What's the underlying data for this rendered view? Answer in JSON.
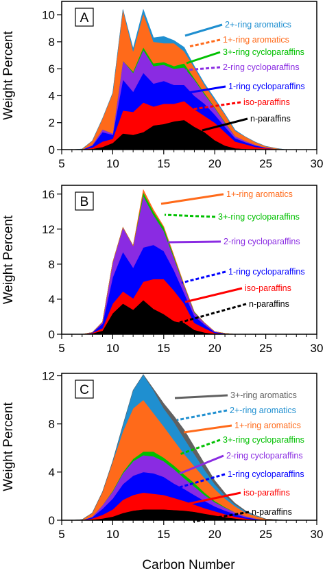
{
  "figure": {
    "ylabel": "Weight Percent",
    "xlabel": "Carbon Number"
  },
  "colors": {
    "n-paraffins": "#000000",
    "iso-paraffins": "#ff0000",
    "1-ring cycloparaffins": "#0000ff",
    "2-ring cycloparaffins": "#8a2be2",
    "3+-ring cycloparaffins": "#00c000",
    "1+-ring aromatics": "#ff6a1a",
    "2+-ring aromatics": "#1f8fd0",
    "3+-ring aromatics": "#606060"
  },
  "chart_data": [
    {
      "panel": "A",
      "type": "area",
      "stacked": true,
      "x": [
        6,
        7,
        8,
        9,
        10,
        11,
        12,
        13,
        14,
        15,
        16,
        17,
        18,
        19,
        20,
        21,
        22,
        23,
        24,
        25,
        26,
        27,
        28,
        29,
        30
      ],
      "xlim": [
        5,
        30
      ],
      "xticks": [
        5,
        10,
        15,
        20,
        25,
        30
      ],
      "ylim": [
        0,
        11
      ],
      "yticks": [
        0,
        2,
        4,
        6,
        8,
        10
      ],
      "series": [
        {
          "name": "n-paraffins",
          "values": [
            0,
            0,
            0.05,
            0.2,
            0.5,
            1.2,
            1.1,
            1.3,
            1.8,
            1.9,
            2.1,
            2.2,
            1.7,
            1.3,
            0.7,
            0.3,
            0.1,
            0.05,
            0,
            0,
            0,
            0,
            0,
            0,
            0
          ]
        },
        {
          "name": "iso-paraffins",
          "values": [
            0,
            0,
            0.1,
            0.4,
            0.3,
            1.7,
            1.7,
            2.2,
            1.4,
            1.5,
            1.3,
            1.4,
            1.3,
            1.2,
            1.3,
            1.0,
            0.5,
            0.35,
            0.2,
            0.1,
            0.05,
            0,
            0,
            0,
            0
          ]
        },
        {
          "name": "1-ring cycloparaffins",
          "values": [
            0,
            0,
            0.15,
            0.7,
            0.3,
            2.3,
            1.5,
            2.2,
            1.7,
            1.7,
            1.4,
            1.2,
            1.0,
            0.9,
            0.6,
            0.4,
            0.25,
            0.15,
            0.1,
            0.05,
            0,
            0,
            0,
            0,
            0
          ]
        },
        {
          "name": "2-ring cycloparaffins",
          "values": [
            0,
            0,
            0.05,
            0.2,
            0.1,
            1.4,
            1.4,
            1.7,
            1.3,
            1.2,
            1.2,
            1.3,
            1.2,
            0.7,
            0.5,
            0.3,
            0.15,
            0.1,
            0.05,
            0,
            0,
            0,
            0,
            0,
            0
          ]
        },
        {
          "name": "3+-ring cycloparaffins",
          "values": [
            0,
            0,
            0,
            0,
            0,
            0,
            0.1,
            0.2,
            0.2,
            0.2,
            0.2,
            0.3,
            0.1,
            0.1,
            0.05,
            0.05,
            0,
            0,
            0,
            0,
            0,
            0,
            0,
            0,
            0
          ]
        },
        {
          "name": "1+-ring aromatics",
          "values": [
            0,
            0.05,
            0.3,
            0.8,
            3.0,
            3.8,
            1.5,
            2.5,
            1.6,
            1.4,
            1.7,
            0.9,
            0.8,
            0.6,
            0.55,
            0.55,
            0.4,
            0.3,
            0.2,
            0.1,
            0.05,
            0,
            0,
            0,
            0
          ]
        },
        {
          "name": "2+-ring aromatics",
          "values": [
            0,
            0,
            0,
            0,
            0,
            0,
            0.2,
            0.3,
            0.3,
            0.5,
            0.2,
            0.3,
            0.1,
            0.1,
            0.1,
            0.05,
            0.05,
            0,
            0,
            0,
            0,
            0,
            0,
            0,
            0
          ]
        }
      ],
      "labels": [
        {
          "text": "2+-ring aromatics",
          "series": "2+-ring aromatics"
        },
        {
          "text": "1+-ring aromatics",
          "series": "1+-ring aromatics"
        },
        {
          "text": "3+-ring cycloparaffins",
          "series": "3+-ring cycloparaffins"
        },
        {
          "text": "2-ring cycloparaffins",
          "series": "2-ring cycloparaffins"
        },
        {
          "text": "1-ring cycloparaffins",
          "series": "1-ring cycloparaffins"
        },
        {
          "text": "iso-paraffins",
          "series": "iso-paraffins"
        },
        {
          "text": "n-paraffins",
          "series": "n-paraffins"
        }
      ]
    },
    {
      "panel": "B",
      "type": "area",
      "stacked": true,
      "x": [
        6,
        7,
        8,
        9,
        10,
        11,
        12,
        13,
        14,
        15,
        16,
        17,
        18,
        19,
        20,
        21,
        22,
        23,
        24,
        25,
        26,
        27,
        28,
        29,
        30
      ],
      "xlim": [
        5,
        30
      ],
      "xticks": [
        5,
        10,
        15,
        20,
        25,
        30
      ],
      "ylim": [
        0,
        17
      ],
      "yticks": [
        0,
        4,
        8,
        12,
        16
      ],
      "series": [
        {
          "name": "n-paraffins",
          "values": [
            0,
            0,
            0.1,
            0.4,
            2.4,
            3.5,
            2.8,
            3.9,
            2.9,
            2.3,
            1.5,
            1.3,
            0.5,
            0.2,
            0.05,
            0,
            0,
            0,
            0,
            0,
            0,
            0,
            0,
            0,
            0
          ]
        },
        {
          "name": "iso-paraffins",
          "values": [
            0,
            0,
            0.05,
            0.3,
            1.1,
            1.4,
            1.3,
            2.1,
            3.4,
            4.0,
            3.5,
            2.2,
            0.8,
            0.5,
            0.1,
            0.05,
            0,
            0,
            0,
            0,
            0,
            0,
            0,
            0,
            0
          ]
        },
        {
          "name": "1-ring cycloparaffins",
          "values": [
            0,
            0,
            0.05,
            0.5,
            3.0,
            4.5,
            3.5,
            3.9,
            3.9,
            3.2,
            2.3,
            1.2,
            0.8,
            0.4,
            0.1,
            0.05,
            0,
            0,
            0,
            0,
            0,
            0,
            0,
            0,
            0
          ]
        },
        {
          "name": "2-ring cycloparaffins",
          "values": [
            0,
            0,
            0,
            0.2,
            1.7,
            2.8,
            2.5,
            5.9,
            3.4,
            2.3,
            1.4,
            0.8,
            0.4,
            0.2,
            0.05,
            0,
            0,
            0,
            0,
            0,
            0,
            0,
            0,
            0,
            0
          ]
        },
        {
          "name": "3+-ring cycloparaffins",
          "values": [
            0,
            0,
            0,
            0,
            0,
            0,
            0,
            0.4,
            0.4,
            0.4,
            0.2,
            0.1,
            0.05,
            0,
            0,
            0,
            0,
            0,
            0,
            0,
            0,
            0,
            0,
            0,
            0
          ]
        },
        {
          "name": "1+-ring aromatics",
          "values": [
            0,
            0,
            0,
            0,
            0,
            0,
            0,
            0.3,
            0.2,
            0.1,
            0.1,
            0.05,
            0,
            0,
            0,
            0,
            0,
            0,
            0,
            0,
            0,
            0,
            0,
            0,
            0
          ]
        }
      ],
      "labels": [
        {
          "text": "1+-ring aromatics",
          "series": "1+-ring aromatics"
        },
        {
          "text": "3+-ring cycloparaffins",
          "series": "3+-ring cycloparaffins"
        },
        {
          "text": "2-ring cycloparaffins",
          "series": "2-ring cycloparaffins"
        },
        {
          "text": "1-ring cycloparaffins",
          "series": "1-ring cycloparaffins"
        },
        {
          "text": "iso-paraffins",
          "series": "iso-paraffins"
        },
        {
          "text": "n-paraffins",
          "series": "n-paraffins"
        }
      ]
    },
    {
      "panel": "C",
      "type": "area",
      "stacked": true,
      "x": [
        6,
        7,
        8,
        9,
        10,
        11,
        12,
        13,
        14,
        15,
        16,
        17,
        18,
        19,
        20,
        21,
        22,
        23,
        24,
        25,
        26,
        27,
        28,
        29,
        30
      ],
      "xlim": [
        5,
        30
      ],
      "xticks": [
        5,
        10,
        15,
        20,
        25,
        30
      ],
      "ylim": [
        0,
        12.2
      ],
      "yticks": [
        0,
        4,
        8,
        12
      ],
      "series": [
        {
          "name": "n-paraffins",
          "values": [
            0,
            0,
            0.05,
            0.15,
            0.3,
            0.6,
            0.8,
            0.9,
            0.9,
            0.9,
            0.85,
            0.8,
            0.7,
            0.55,
            0.4,
            0.25,
            0.15,
            0.05,
            0,
            0,
            0,
            0,
            0,
            0,
            0
          ]
        },
        {
          "name": "iso-paraffins",
          "values": [
            0,
            0,
            0.1,
            0.3,
            0.6,
            1.1,
            1.3,
            1.4,
            1.3,
            1.2,
            1.0,
            0.8,
            0.6,
            0.45,
            0.35,
            0.25,
            0.15,
            0.1,
            0.05,
            0,
            0,
            0,
            0,
            0,
            0
          ]
        },
        {
          "name": "1-ring cycloparaffins",
          "values": [
            0,
            0,
            0.1,
            0.5,
            0.9,
            1.3,
            1.6,
            1.7,
            1.7,
            1.5,
            1.2,
            1.0,
            0.8,
            0.6,
            0.4,
            0.3,
            0.2,
            0.1,
            0.05,
            0,
            0,
            0,
            0,
            0,
            0
          ]
        },
        {
          "name": "2-ring cycloparaffins",
          "values": [
            0,
            0,
            0.05,
            0.3,
            0.6,
            0.9,
            1.2,
            1.4,
            1.4,
            1.3,
            1.2,
            0.9,
            0.7,
            0.5,
            0.35,
            0.25,
            0.15,
            0.1,
            0.05,
            0,
            0,
            0,
            0,
            0,
            0
          ]
        },
        {
          "name": "3+-ring cycloparaffins",
          "values": [
            0,
            0,
            0,
            0,
            0.05,
            0.1,
            0.2,
            0.3,
            0.4,
            0.3,
            0.3,
            0.3,
            0.3,
            0.2,
            0.1,
            0.05,
            0,
            0,
            0,
            0,
            0,
            0,
            0,
            0,
            0
          ]
        },
        {
          "name": "1+-ring aromatics",
          "values": [
            0,
            0.05,
            0.3,
            1.1,
            2.4,
            3.4,
            4.2,
            4.3,
            3.2,
            2.6,
            2.1,
            1.7,
            1.4,
            1.2,
            1.0,
            0.7,
            0.5,
            0.3,
            0.2,
            0.1,
            0.05,
            0,
            0,
            0,
            0
          ]
        },
        {
          "name": "2+-ring aromatics",
          "values": [
            0,
            0,
            0,
            0,
            0.05,
            0.5,
            1.5,
            2.1,
            1.9,
            1.5,
            1.5,
            1.3,
            1.0,
            0.7,
            0.4,
            0.25,
            0.15,
            0.1,
            0.05,
            0,
            0,
            0,
            0,
            0,
            0
          ]
        },
        {
          "name": "3+-ring aromatics",
          "values": [
            0,
            0,
            0,
            0,
            0,
            0,
            0,
            0,
            0.1,
            0.4,
            0.5,
            0.7,
            0.6,
            0.5,
            0.3,
            0.2,
            0.1,
            0.05,
            0,
            0,
            0,
            0,
            0,
            0,
            0
          ]
        }
      ],
      "labels": [
        {
          "text": "3+-ring aromatics",
          "series": "3+-ring aromatics"
        },
        {
          "text": "2+-ring aromatics",
          "series": "2+-ring aromatics"
        },
        {
          "text": "1+-ring aromatics",
          "series": "1+-ring aromatics"
        },
        {
          "text": "3+-ring cycloparaffins",
          "series": "3+-ring cycloparaffins"
        },
        {
          "text": "2-ring cycloparaffins",
          "series": "2-ring cycloparaffins"
        },
        {
          "text": "1-ring cycloparaffins",
          "series": "1-ring cycloparaffins"
        },
        {
          "text": "iso-paraffins",
          "series": "iso-paraffins"
        },
        {
          "text": "n-paraffins",
          "series": "n-paraffins"
        }
      ]
    }
  ]
}
